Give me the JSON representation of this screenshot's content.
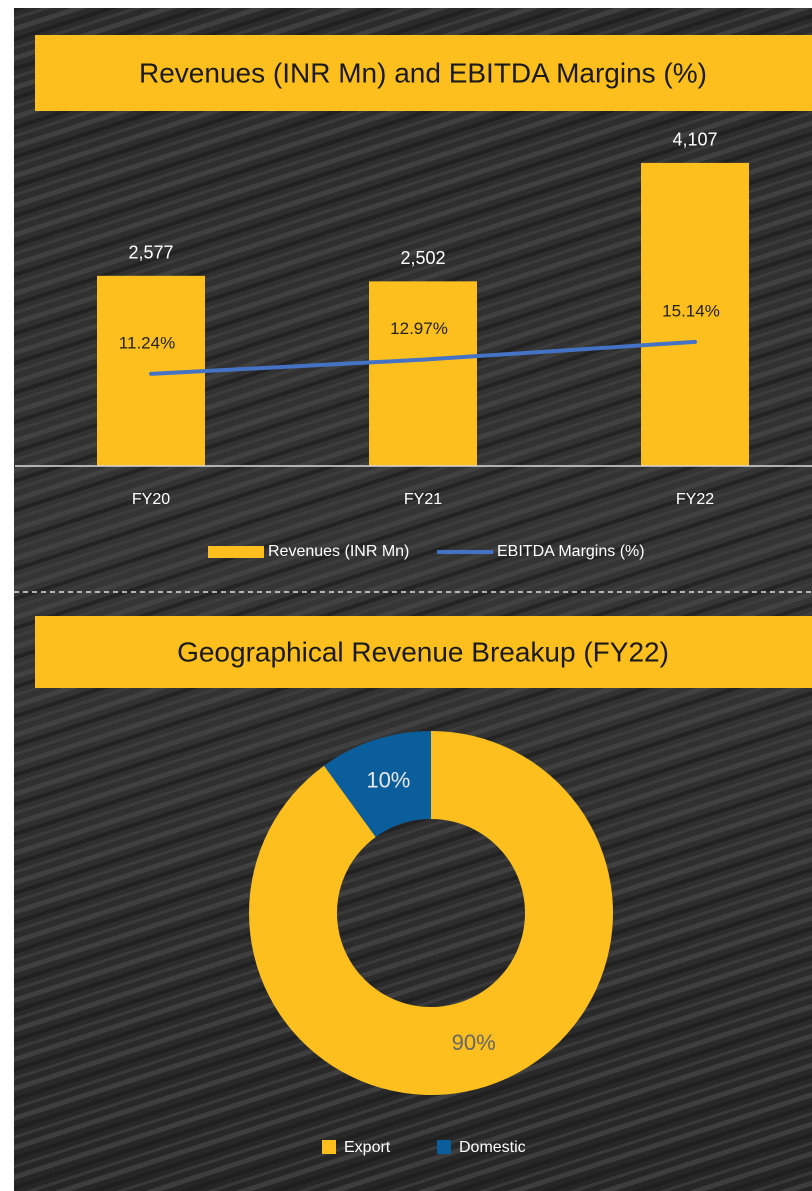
{
  "chart_data": [
    {
      "type": "bar",
      "title": "Revenues (INR Mn) and EBITDA Margins (%)",
      "categories": [
        "FY20",
        "FY21",
        "FY22"
      ],
      "series": [
        {
          "name": "Revenues (INR Mn)",
          "type": "bar",
          "color": "#fdbf1e",
          "values": [
            2577,
            2502,
            4107
          ],
          "value_labels": [
            "2,577",
            "2,502",
            "4,107"
          ]
        },
        {
          "name": "EBITDA Margins (%)",
          "type": "line",
          "color": "#4472c4",
          "axis": "y2",
          "values": [
            11.24,
            12.97,
            15.14
          ],
          "value_labels": [
            "11.24%",
            "12.97%",
            "15.14%"
          ]
        }
      ],
      "ylim": [
        0,
        5000
      ],
      "y2lim": [
        0,
        45
      ],
      "legend": "bottom"
    },
    {
      "type": "pie",
      "title": "Geographical Revenue Breakup (FY22)",
      "donut": true,
      "categories": [
        "Export",
        "Domestic"
      ],
      "values": [
        90,
        10
      ],
      "value_labels": [
        "90%",
        "10%"
      ],
      "colors": [
        "#fdbf1e",
        "#0b5e9c"
      ],
      "legend": "bottom"
    }
  ]
}
